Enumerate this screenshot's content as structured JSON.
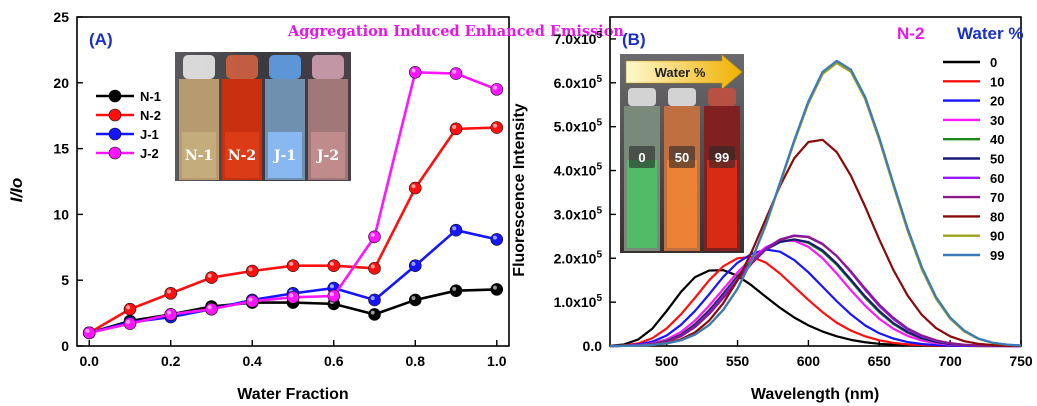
{
  "colors": {
    "panel_tag": "#1a2fc9",
    "aie_title": "#e817e8",
    "n2_label": "#e817e8",
    "water_title": "#1a2fc9"
  },
  "photo_a": {
    "vial_labels": [
      "N-1",
      "N-2",
      "J-1",
      "J-2"
    ]
  },
  "photo_b": {
    "arrow_label": "Water %",
    "vial_labels": [
      "0",
      "50",
      "99"
    ]
  },
  "chart_data": [
    {
      "type": "line",
      "panel_label": "(A)",
      "title": "Aggregation Induced Enhanced Emission",
      "xlabel": "Water Fraction",
      "ylabel": "I/Io",
      "xlim": [
        -0.03,
        1.03
      ],
      "ylim": [
        0,
        25
      ],
      "xticks": [
        0.0,
        0.2,
        0.4,
        0.6,
        0.8,
        1.0
      ],
      "xtick_labels": [
        "0.0",
        "0.2",
        "0.4",
        "0.6",
        "0.8",
        "1.0"
      ],
      "yticks": [
        0,
        5,
        10,
        15,
        20,
        25
      ],
      "ytick_labels": [
        "0",
        "5",
        "10",
        "15",
        "20",
        "25"
      ],
      "grid": false,
      "legend_position": "top-left",
      "x": [
        0.0,
        0.1,
        0.2,
        0.3,
        0.4,
        0.5,
        0.6,
        0.7,
        0.8,
        0.9,
        1.0
      ],
      "series": [
        {
          "name": "N-1",
          "color": "#000000",
          "values": [
            1.0,
            1.9,
            2.4,
            3.0,
            3.3,
            3.3,
            3.2,
            2.4,
            3.5,
            4.2,
            4.3
          ]
        },
        {
          "name": "N-2",
          "color": "#ff1010",
          "values": [
            1.0,
            2.8,
            4.0,
            5.2,
            5.7,
            6.1,
            6.1,
            5.9,
            12.0,
            16.5,
            16.6
          ]
        },
        {
          "name": "J-1",
          "color": "#1515ff",
          "values": [
            1.0,
            1.8,
            2.2,
            2.8,
            3.5,
            4.0,
            4.4,
            3.5,
            6.1,
            8.8,
            8.1
          ]
        },
        {
          "name": "J-2",
          "color": "#ff15ff",
          "values": [
            1.0,
            1.7,
            2.4,
            2.8,
            3.4,
            3.7,
            3.8,
            8.3,
            20.8,
            20.7,
            19.5
          ]
        }
      ]
    },
    {
      "type": "line",
      "panel_label": "(B)",
      "title": "N-2",
      "xlabel": "Wavelength (nm)",
      "ylabel": "Fluorescence Intensity",
      "xlim": [
        460,
        750
      ],
      "ylim": [
        0,
        750000
      ],
      "xticks": [
        500,
        550,
        600,
        650,
        700,
        750
      ],
      "xtick_labels": [
        "500",
        "550",
        "600",
        "650",
        "700",
        "750"
      ],
      "yticks": [
        0,
        100000,
        200000,
        300000,
        400000,
        500000,
        600000,
        700000
      ],
      "ytick_labels": [
        "0.0",
        "1.0x10",
        "2.0x10",
        "3.0x10",
        "4.0x10",
        "5.0x10",
        "6.0x10",
        "7.0x10"
      ],
      "ytick_exponent": "5",
      "grid": false,
      "legend_title": "Water %",
      "legend_position": "right",
      "x": [
        460,
        470,
        480,
        490,
        500,
        510,
        520,
        530,
        540,
        550,
        560,
        570,
        580,
        590,
        600,
        610,
        620,
        630,
        640,
        650,
        660,
        670,
        680,
        690,
        700,
        710,
        720,
        730,
        740,
        750
      ],
      "series": [
        {
          "name": "0",
          "color": "#000000",
          "values": [
            500,
            3500,
            15000,
            40000,
            80000,
            123000,
            157000,
            172000,
            173000,
            160000,
            138000,
            112000,
            87000,
            65000,
            47000,
            33000,
            22000,
            14000,
            8500,
            5000,
            3000,
            1700,
            900,
            500,
            200,
            100,
            0,
            0,
            0,
            0
          ]
        },
        {
          "name": "10",
          "color": "#ff1010",
          "values": [
            0,
            1500,
            6000,
            18000,
            40000,
            72000,
            110000,
            150000,
            182000,
            200000,
            203000,
            190000,
            165000,
            135000,
            105000,
            77000,
            53000,
            35000,
            22000,
            13000,
            7000,
            3700,
            1800,
            800,
            300,
            100,
            0,
            0,
            0,
            0
          ]
        },
        {
          "name": "20",
          "color": "#1515ff",
          "values": [
            0,
            1000,
            3500,
            10000,
            24000,
            48000,
            80000,
            118000,
            158000,
            190000,
            210000,
            220000,
            215000,
            196000,
            168000,
            135000,
            102000,
            72000,
            47000,
            29000,
            17000,
            9000,
            4500,
            2100,
            900,
            300,
            100,
            0,
            0,
            0
          ]
        },
        {
          "name": "30",
          "color": "#ff15ff",
          "values": [
            0,
            500,
            2000,
            6000,
            15000,
            32000,
            58000,
            92000,
            130000,
            168000,
            200000,
            225000,
            240000,
            240000,
            226000,
            200000,
            165000,
            127000,
            92000,
            62000,
            39000,
            23000,
            12500,
            6500,
            3000,
            1300,
            500,
            200,
            0,
            0
          ]
        },
        {
          "name": "40",
          "color": "#1a8a1a",
          "values": [
            0,
            300,
            1500,
            4500,
            12000,
            26000,
            50000,
            82000,
            120000,
            160000,
            195000,
            222000,
            238000,
            243000,
            235000,
            215000,
            185000,
            148000,
            110000,
            77000,
            50000,
            30000,
            17000,
            9000,
            4300,
            2000,
            800,
            300,
            100,
            0
          ]
        },
        {
          "name": "50",
          "color": "#1a1a7a",
          "values": [
            0,
            300,
            1500,
            4500,
            11000,
            25000,
            48000,
            80000,
            118000,
            157000,
            193000,
            220000,
            237000,
            243000,
            237000,
            218000,
            188000,
            151000,
            113000,
            80000,
            52000,
            32000,
            18000,
            9500,
            4600,
            2100,
            900,
            300,
            100,
            0
          ]
        },
        {
          "name": "60",
          "color": "#9a1aff",
          "values": [
            0,
            300,
            1500,
            4000,
            10000,
            23000,
            45000,
            76000,
            114000,
            154000,
            192000,
            223000,
            243000,
            252000,
            249000,
            233000,
            205000,
            168000,
            128000,
            91000,
            61000,
            38000,
            22000,
            12000,
            5800,
            2700,
            1200,
            500,
            200,
            0
          ]
        },
        {
          "name": "70",
          "color": "#8a1a8a",
          "values": [
            0,
            300,
            1500,
            4000,
            10000,
            22000,
            43000,
            73000,
            110000,
            150000,
            188000,
            220000,
            242000,
            251000,
            248000,
            232000,
            205000,
            170000,
            131000,
            94000,
            64000,
            40000,
            24000,
            13000,
            6500,
            3000,
            1300,
            500,
            200,
            0
          ]
        },
        {
          "name": "80",
          "color": "#8a0a0a",
          "values": [
            0,
            200,
            800,
            2500,
            6500,
            15000,
            31000,
            58000,
            98000,
            150000,
            215000,
            290000,
            365000,
            428000,
            465000,
            470000,
            442000,
            388000,
            318000,
            243000,
            173000,
            115000,
            71000,
            41000,
            22000,
            11000,
            5000,
            2200,
            900,
            300
          ]
        },
        {
          "name": "90",
          "color": "#a0a020",
          "values": [
            0,
            200,
            800,
            2500,
            6000,
            13000,
            26000,
            48000,
            82000,
            130000,
            195000,
            275000,
            370000,
            465000,
            553000,
            620000,
            645000,
            625000,
            563000,
            470000,
            365000,
            263000,
            175000,
            108000,
            62000,
            33000,
            16000,
            7000,
            3000,
            1000
          ]
        },
        {
          "name": "99",
          "color": "#3a7ab8",
          "values": [
            0,
            200,
            800,
            2500,
            6000,
            13000,
            26000,
            48000,
            83000,
            131000,
            197000,
            278000,
            373000,
            469000,
            558000,
            625000,
            650000,
            630000,
            568000,
            475000,
            370000,
            268000,
            180000,
            112000,
            65000,
            35000,
            17000,
            7500,
            3200,
            1200
          ]
        }
      ]
    }
  ]
}
